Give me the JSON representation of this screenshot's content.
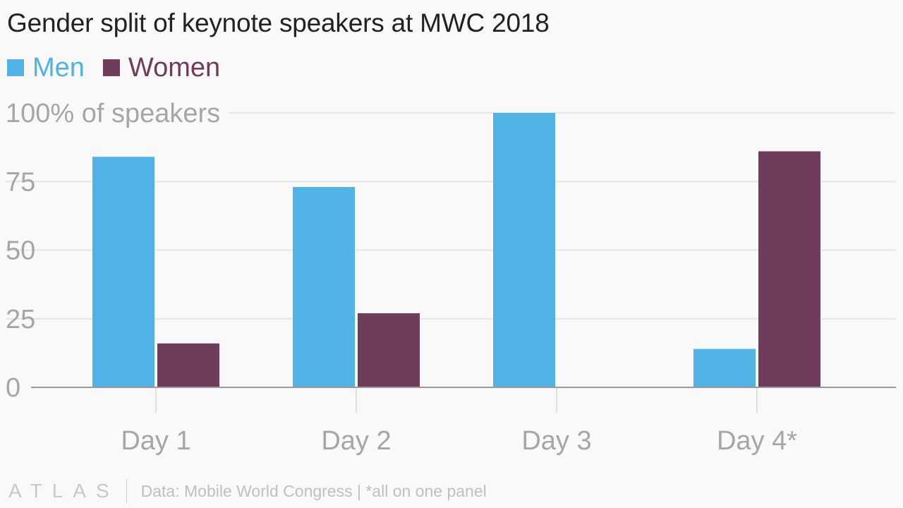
{
  "chart_data": {
    "type": "bar",
    "title": "Gender split of keynote speakers at MWC 2018",
    "categories": [
      "Day 1",
      "Day 2",
      "Day 3",
      "Day 4*"
    ],
    "series": [
      {
        "name": "Men",
        "color": "#51b2e5",
        "values": [
          84,
          73,
          100,
          14
        ]
      },
      {
        "name": "Women",
        "color": "#703c5c",
        "values": [
          16,
          27,
          0,
          86
        ]
      }
    ],
    "ylim": [
      0,
      100
    ],
    "yticks": [
      {
        "value": 0,
        "label": "0"
      },
      {
        "value": 25,
        "label": "25"
      },
      {
        "value": 50,
        "label": "50"
      },
      {
        "value": 75,
        "label": "75"
      },
      {
        "value": 100,
        "label": "100% of speakers"
      }
    ],
    "grid": true,
    "legend_position": "top-left"
  },
  "footer": {
    "logo": "ATLAS",
    "source": "Data: Mobile World Congress | *all on one panel"
  },
  "colors": {
    "background": "#f9f9f9",
    "grid": "#e6e6e6",
    "axis": "#999999",
    "tick_text": "#a6a6a6"
  }
}
